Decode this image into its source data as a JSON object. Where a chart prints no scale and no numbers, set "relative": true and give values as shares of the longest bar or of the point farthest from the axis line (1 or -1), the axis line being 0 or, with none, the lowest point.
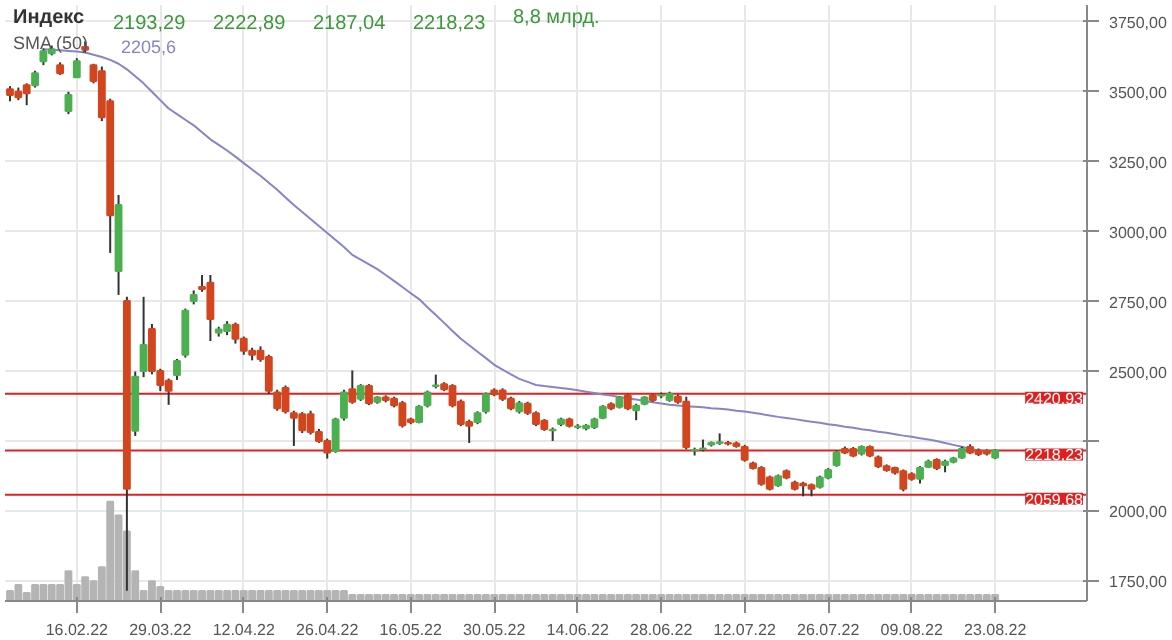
{
  "chart_data": [
    {
      "type": "candlestick",
      "title": "Индекс",
      "annotations": [
        "2193,29",
        "2222,89",
        "2187,04",
        "2218,23",
        "8,8 млрд.",
        "2205,6"
      ],
      "categories": [
        null,
        null,
        null,
        null,
        null,
        null,
        null,
        null,
        "16.02.22",
        null,
        null,
        null,
        null,
        null,
        null,
        null,
        null,
        null,
        "29.03.22",
        null,
        null,
        null,
        null,
        null,
        null,
        null,
        null,
        null,
        "12.04.22",
        null,
        null,
        null,
        null,
        null,
        null,
        null,
        null,
        null,
        "26.04.22",
        null,
        null,
        null,
        null,
        null,
        null,
        null,
        null,
        null,
        "16.05.22",
        null,
        null,
        null,
        null,
        null,
        null,
        null,
        null,
        null,
        "30.05.22",
        null,
        null,
        null,
        null,
        null,
        null,
        null,
        null,
        null,
        "14.06.22",
        null,
        null,
        null,
        null,
        null,
        null,
        null,
        null,
        null,
        "28.06.22",
        null,
        null,
        null,
        null,
        null,
        null,
        null,
        null,
        null,
        "12.07.22",
        null,
        null,
        null,
        null,
        null,
        null,
        null,
        null,
        null,
        "26.07.22",
        null,
        null,
        null,
        null,
        null,
        null,
        null,
        null,
        null,
        "09.08.22",
        null,
        null,
        null,
        null,
        null,
        null,
        null,
        null,
        null,
        "23.08.22"
      ],
      "ohlc": [
        [
          3509,
          3520,
          3466,
          3488
        ],
        [
          3500,
          3515,
          3470,
          3480
        ],
        [
          3523,
          3530,
          3452,
          3495
        ],
        [
          3523,
          3575,
          3515,
          3566
        ],
        [
          3609,
          3655,
          3595,
          3645
        ],
        [
          3638,
          3665,
          3630,
          3652
        ],
        [
          3595,
          3605,
          3560,
          3566
        ],
        [
          3431,
          3500,
          3420,
          3488
        ],
        [
          3552,
          3620,
          3550,
          3609
        ],
        [
          3660,
          3680,
          3640,
          3650
        ],
        [
          3595,
          3600,
          3530,
          3538
        ],
        [
          3573,
          3590,
          3395,
          3409
        ],
        [
          3466,
          3475,
          2924,
          3059
        ],
        [
          2859,
          3131,
          2774,
          3095
        ],
        [
          2752,
          2767,
          1717,
          2081
        ],
        [
          2288,
          2500,
          2270,
          2481
        ],
        [
          2502,
          2767,
          2480,
          2595
        ],
        [
          2652,
          2670,
          2490,
          2502
        ],
        [
          2502,
          2510,
          2430,
          2452
        ],
        [
          2467,
          2475,
          2381,
          2431
        ],
        [
          2488,
          2545,
          2470,
          2538
        ],
        [
          2560,
          2725,
          2550,
          2717
        ],
        [
          2752,
          2790,
          2740,
          2774
        ],
        [
          2802,
          2845,
          2785,
          2795
        ],
        [
          2817,
          2845,
          2609,
          2688
        ],
        [
          2640,
          2660,
          2625,
          2650
        ],
        [
          2645,
          2680,
          2630,
          2667
        ],
        [
          2667,
          2675,
          2600,
          2617
        ],
        [
          2617,
          2625,
          2560,
          2574
        ],
        [
          2574,
          2585,
          2540,
          2560
        ],
        [
          2574,
          2590,
          2535,
          2545
        ],
        [
          2552,
          2560,
          2420,
          2431
        ],
        [
          2425,
          2435,
          2360,
          2369
        ],
        [
          2441,
          2450,
          2350,
          2358
        ],
        [
          2351,
          2360,
          2234,
          2335
        ],
        [
          2347,
          2355,
          2280,
          2290
        ],
        [
          2347,
          2360,
          2275,
          2284
        ],
        [
          2284,
          2295,
          2245,
          2252
        ],
        [
          2252,
          2260,
          2189,
          2211
        ],
        [
          2216,
          2335,
          2210,
          2329
        ],
        [
          2335,
          2435,
          2325,
          2425
        ],
        [
          2437,
          2504,
          2385,
          2392
        ],
        [
          2403,
          2455,
          2395,
          2448
        ],
        [
          2448,
          2455,
          2380,
          2387
        ],
        [
          2392,
          2412,
          2385,
          2407
        ],
        [
          2407,
          2415,
          2390,
          2398
        ],
        [
          2403,
          2410,
          2372,
          2380
        ],
        [
          2387,
          2395,
          2300,
          2308
        ],
        [
          2329,
          2335,
          2312,
          2320
        ],
        [
          2320,
          2380,
          2315,
          2374
        ],
        [
          2380,
          2432,
          2372,
          2425
        ],
        [
          2448,
          2489,
          2440,
          2450
        ],
        [
          2455,
          2462,
          2430,
          2437
        ],
        [
          2448,
          2455,
          2372,
          2380
        ],
        [
          2392,
          2400,
          2305,
          2313
        ],
        [
          2320,
          2328,
          2245,
          2306
        ],
        [
          2320,
          2358,
          2312,
          2351
        ],
        [
          2358,
          2425,
          2350,
          2419
        ],
        [
          2432,
          2440,
          2412,
          2419
        ],
        [
          2432,
          2440,
          2395,
          2403
        ],
        [
          2403,
          2410,
          2362,
          2369
        ],
        [
          2358,
          2395,
          2350,
          2387
        ],
        [
          2385,
          2392,
          2345,
          2353
        ],
        [
          2351,
          2358,
          2305,
          2313
        ],
        [
          2324,
          2330,
          2288,
          2295
        ],
        [
          2290,
          2300,
          2252,
          2292
        ],
        [
          2313,
          2335,
          2305,
          2329
        ],
        [
          2329,
          2335,
          2300,
          2306
        ],
        [
          2302,
          2312,
          2295,
          2304
        ],
        [
          2297,
          2312,
          2290,
          2306
        ],
        [
          2302,
          2335,
          2295,
          2329
        ],
        [
          2335,
          2380,
          2330,
          2374
        ],
        [
          2383,
          2390,
          2362,
          2369
        ],
        [
          2374,
          2412,
          2368,
          2407
        ],
        [
          2414,
          2420,
          2362,
          2369
        ],
        [
          2362,
          2385,
          2326,
          2378
        ],
        [
          2385,
          2412,
          2380,
          2407
        ],
        [
          2414,
          2420,
          2392,
          2398
        ],
        [
          2414,
          2425,
          2405,
          2416
        ],
        [
          2398,
          2428,
          2392,
          2421
        ],
        [
          2410,
          2418,
          2385,
          2392
        ],
        [
          2392,
          2410,
          2222,
          2230
        ],
        [
          2218,
          2228,
          2200,
          2220
        ],
        [
          2223,
          2257,
          2215,
          2225
        ],
        [
          2239,
          2250,
          2232,
          2245
        ],
        [
          2245,
          2279,
          2238,
          2247
        ],
        [
          2245,
          2252,
          2236,
          2243
        ],
        [
          2243,
          2250,
          2228,
          2234
        ],
        [
          2230,
          2238,
          2178,
          2185
        ],
        [
          2171,
          2178,
          2150,
          2155
        ],
        [
          2155,
          2162,
          2092,
          2099
        ],
        [
          2121,
          2128,
          2075,
          2081
        ],
        [
          2094,
          2132,
          2088,
          2126
        ],
        [
          2144,
          2150,
          2115,
          2121
        ],
        [
          2103,
          2110,
          2075,
          2081
        ],
        [
          2099,
          2106,
          2054,
          2094
        ],
        [
          2094,
          2100,
          2054,
          2081
        ],
        [
          2088,
          2128,
          2082,
          2121
        ],
        [
          2121,
          2155,
          2115,
          2148
        ],
        [
          2166,
          2218,
          2160,
          2211
        ],
        [
          2223,
          2232,
          2205,
          2211
        ],
        [
          2223,
          2230,
          2194,
          2200
        ],
        [
          2207,
          2236,
          2200,
          2230
        ],
        [
          2230,
          2236,
          2194,
          2200
        ],
        [
          2193,
          2200,
          2155,
          2162
        ],
        [
          2162,
          2168,
          2142,
          2148
        ],
        [
          2155,
          2160,
          2132,
          2139
        ],
        [
          2144,
          2150,
          2072,
          2081
        ],
        [
          2133,
          2140,
          2110,
          2117
        ],
        [
          2117,
          2162,
          2100,
          2155
        ],
        [
          2160,
          2185,
          2155,
          2178
        ],
        [
          2184,
          2190,
          2148,
          2155
        ],
        [
          2166,
          2185,
          2140,
          2178
        ],
        [
          2178,
          2195,
          2172,
          2189
        ],
        [
          2193,
          2232,
          2188,
          2223
        ],
        [
          2230,
          2240,
          2205,
          2211
        ],
        [
          2218,
          2225,
          2198,
          2205
        ],
        [
          2216,
          2222,
          2200,
          2207
        ],
        [
          2193.29,
          2222.89,
          2187.04,
          2218.23
        ]
      ],
      "colors": [
        "#d2451e",
        "#d2451e",
        "#d2451e",
        "#4caf50",
        "#4caf50",
        "#4caf50",
        "#d2451e",
        "#4caf50",
        "#4caf50",
        "#d2451e",
        "#d2451e",
        "#d2451e",
        "#d2451e",
        "#4caf50",
        "#d2451e",
        "#4caf50",
        "#4caf50",
        "#d2451e",
        "#d2451e",
        "#d2451e",
        "#4caf50",
        "#4caf50",
        "#4caf50",
        "#d2451e",
        "#d2451e",
        "#4caf50",
        "#4caf50",
        "#d2451e",
        "#d2451e",
        "#d2451e",
        "#d2451e",
        "#d2451e",
        "#d2451e",
        "#d2451e",
        "#d2451e",
        "#d2451e",
        "#d2451e",
        "#d2451e",
        "#d2451e",
        "#4caf50",
        "#4caf50",
        "#d2451e",
        "#4caf50",
        "#d2451e",
        "#4caf50",
        "#d2451e",
        "#d2451e",
        "#d2451e",
        "#d2451e",
        "#4caf50",
        "#4caf50",
        "#4caf50",
        "#d2451e",
        "#d2451e",
        "#d2451e",
        "#d2451e",
        "#4caf50",
        "#4caf50",
        "#d2451e",
        "#d2451e",
        "#d2451e",
        "#4caf50",
        "#d2451e",
        "#d2451e",
        "#d2451e",
        "#4caf50",
        "#4caf50",
        "#d2451e",
        "#4caf50",
        "#4caf50",
        "#4caf50",
        "#4caf50",
        "#d2451e",
        "#4caf50",
        "#d2451e",
        "#4caf50",
        "#4caf50",
        "#d2451e",
        "#4caf50",
        "#4caf50",
        "#d2451e",
        "#d2451e",
        "#4caf50",
        "#4caf50",
        "#4caf50",
        "#4caf50",
        "#d2451e",
        "#d2451e",
        "#d2451e",
        "#d2451e",
        "#d2451e",
        "#d2451e",
        "#4caf50",
        "#d2451e",
        "#d2451e",
        "#d2451e",
        "#d2451e",
        "#4caf50",
        "#4caf50",
        "#4caf50",
        "#d2451e",
        "#d2451e",
        "#4caf50",
        "#d2451e",
        "#d2451e",
        "#d2451e",
        "#d2451e",
        "#d2451e",
        "#d2451e",
        "#4caf50",
        "#4caf50",
        "#d2451e",
        "#4caf50",
        "#4caf50",
        "#4caf50",
        "#d2451e",
        "#d2451e",
        "#d2451e",
        "#4caf50"
      ],
      "series": [
        {
          "name": "SMA (50)",
          "type": "line",
          "color": "#8585c8",
          "values": [
            null,
            null,
            null,
            null,
            3652,
            3650,
            3648,
            3646,
            3644,
            3640,
            3632,
            3624,
            3614,
            3600,
            3580,
            3555,
            3530,
            3500,
            3470,
            3440,
            3420,
            3400,
            3380,
            3355,
            3330,
            3310,
            3290,
            3268,
            3245,
            3222,
            3200,
            3175,
            3150,
            3122,
            3095,
            3070,
            3045,
            3020,
            2995,
            2970,
            2945,
            2917,
            2900,
            2883,
            2866,
            2845,
            2824,
            2802,
            2780,
            2759,
            2730,
            2702,
            2674,
            2645,
            2617,
            2594,
            2571,
            2548,
            2524,
            2507,
            2490,
            2474,
            2463,
            2452,
            2448,
            2445,
            2441,
            2438,
            2433,
            2428,
            2423,
            2418,
            2414,
            2409,
            2404,
            2400,
            2395,
            2390,
            2386,
            2381,
            2379,
            2376,
            2374,
            2372,
            2369,
            2367,
            2364,
            2360,
            2357,
            2353,
            2348,
            2343,
            2338,
            2334,
            2330,
            2325,
            2321,
            2317,
            2312,
            2308,
            2303,
            2299,
            2294,
            2290,
            2285,
            2281,
            2276,
            2271,
            2267,
            2262,
            2257,
            2252,
            2245,
            2238,
            2231,
            2224,
            2218,
            2212,
            null
          ]
        }
      ],
      "ylim": [
        1680,
        3810
      ],
      "yticks": [
        {
          "value": 1750,
          "label": "1750,00"
        },
        {
          "value": 2000,
          "label": "2000,00"
        },
        {
          "value": 2250,
          "label": null
        },
        {
          "value": 2500,
          "label": "2500,00"
        },
        {
          "value": 2750,
          "label": "2750,00"
        },
        {
          "value": 3000,
          "label": "3000,00"
        },
        {
          "value": 3250,
          "label": "3250,00"
        },
        {
          "value": 3500,
          "label": "3500,00"
        },
        {
          "value": 3750,
          "label": "3750,00"
        }
      ],
      "ref_lines": [
        {
          "axis": "y",
          "value": 2420.93,
          "label": "2420,93",
          "color": "#e02020"
        },
        {
          "axis": "y",
          "value": 2218.23,
          "label": "2218,23",
          "color": "#e02020"
        },
        {
          "axis": "y",
          "value": 2059.68,
          "label": "2059,68",
          "color": "#e02020"
        }
      ],
      "grid": true
    },
    {
      "type": "bar",
      "relative": true,
      "color": "#b4b4b4",
      "categories": [
        null,
        null,
        null,
        null,
        null,
        null,
        null,
        null,
        null,
        null,
        null,
        null,
        null,
        null,
        null,
        null,
        null,
        null,
        null,
        null,
        null,
        null,
        null,
        null,
        null,
        null,
        null,
        null,
        null,
        null,
        null,
        null,
        null,
        null,
        null,
        null,
        null,
        null,
        null,
        null,
        null,
        null,
        null,
        null,
        null,
        null,
        null,
        null,
        null,
        null,
        null,
        null,
        null,
        null,
        null,
        null,
        null,
        null,
        null,
        null,
        null,
        null,
        null,
        null,
        null,
        null,
        null,
        null,
        null,
        null,
        null,
        null,
        null,
        null,
        null,
        null,
        null,
        null,
        null,
        null,
        null,
        null,
        null,
        null,
        null,
        null,
        null,
        null,
        null,
        null,
        null,
        null,
        null,
        null,
        null,
        null,
        null,
        null,
        null,
        null,
        null,
        null,
        null,
        null,
        null,
        null,
        null,
        null,
        null,
        null,
        null,
        null,
        null,
        null,
        null,
        null,
        null,
        null,
        null
      ],
      "values": [
        0.1,
        0.16,
        0.08,
        0.16,
        0.16,
        0.16,
        0.16,
        0.3,
        0.16,
        0.24,
        0.2,
        0.34,
        1,
        0.86,
        0.7,
        0.3,
        0.1,
        0.2,
        0.14,
        0.1,
        0.1,
        0.1,
        0.1,
        0.1,
        0.1,
        0.1,
        0.1,
        0.1,
        0.1,
        0.1,
        0.1,
        0.1,
        0.1,
        0.1,
        0.1,
        0.1,
        0.1,
        0.1,
        0.1,
        0.1,
        0.1,
        0.06,
        0.06,
        0.06,
        0.06,
        0.06,
        0.06,
        0.06,
        0.06,
        0.06,
        0.06,
        0.06,
        0.06,
        0.06,
        0.06,
        0.06,
        0.06,
        0.06,
        0.06,
        0.06,
        0.06,
        0.06,
        0.06,
        0.06,
        0.06,
        0.06,
        0.06,
        0.06,
        0.06,
        0.06,
        0.06,
        0.06,
        0.06,
        0.06,
        0.06,
        0.06,
        0.06,
        0.06,
        0.06,
        0.06,
        0.06,
        0.06,
        0.06,
        0.06,
        0.06,
        0.06,
        0.06,
        0.06,
        0.06,
        0.06,
        0.06,
        0.06,
        0.06,
        0.06,
        0.06,
        0.06,
        0.06,
        0.06,
        0.06,
        0.06,
        0.06,
        0.06,
        0.06,
        0.06,
        0.06,
        0.06,
        0.06,
        0.06,
        0.06,
        0.06,
        0.06,
        0.06,
        0.06,
        0.06,
        0.06,
        0.06,
        0.06,
        0.06,
        0.06
      ]
    }
  ]
}
